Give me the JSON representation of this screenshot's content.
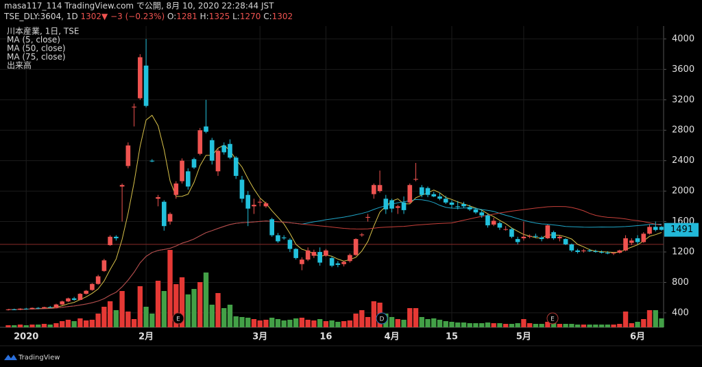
{
  "header": {
    "line1": "masa117_114 TradingView.com で公開, 8月 10, 2020 22:28:44 JST",
    "symbol": "TSE_DLY:3604, 1D",
    "change": "1302▼ −3 (−0.23%)",
    "ohlc": [
      {
        "k": "O:",
        "v": "1281"
      },
      {
        "k": "H:",
        "v": "1325"
      },
      {
        "k": "L:",
        "v": "1270"
      },
      {
        "k": "C:",
        "v": "1302"
      }
    ]
  },
  "footer": "TradingView",
  "chart_data": {
    "type": "candlestick",
    "legend_title": "川本産業, 1日, TSE",
    "volume_label": "出来高",
    "up_color": "#ef5350",
    "down_color": "#22c1dc",
    "vol_up_color": "#e53935",
    "vol_down_color": "#43a047",
    "ylim": [
      210,
      4170
    ],
    "yticks": [
      400,
      800,
      1200,
      1600,
      2000,
      2400,
      2800,
      3200,
      3600,
      4000
    ],
    "grid": true,
    "last_price": 1491,
    "price_line": 1300,
    "events": [
      "E",
      "D",
      "E"
    ],
    "categories": [
      null,
      null,
      null,
      "2020",
      null,
      null,
      null,
      null,
      null,
      null,
      null,
      null,
      null,
      null,
      null,
      null,
      null,
      null,
      null,
      null,
      null,
      null,
      null,
      "2月",
      null,
      null,
      null,
      null,
      null,
      null,
      null,
      null,
      null,
      null,
      null,
      null,
      null,
      null,
      null,
      null,
      null,
      null,
      "3月",
      null,
      null,
      null,
      null,
      null,
      null,
      null,
      null,
      null,
      null,
      "16",
      null,
      null,
      null,
      null,
      null,
      null,
      null,
      null,
      null,
      null,
      "4月",
      null,
      null,
      null,
      null,
      null,
      null,
      null,
      null,
      null,
      "15",
      null,
      null,
      null,
      null,
      null,
      null,
      null,
      null,
      null,
      null,
      null,
      "5月",
      null,
      null,
      null,
      null,
      null,
      null,
      null,
      null,
      null,
      null,
      null,
      null,
      null,
      null,
      null,
      null,
      null,
      null,
      "6月",
      null,
      null,
      null,
      null
    ],
    "ohlc": [
      [
        440,
        450,
        430,
        445
      ],
      [
        445,
        455,
        435,
        440
      ],
      [
        440,
        460,
        435,
        455
      ],
      [
        455,
        465,
        445,
        450
      ],
      [
        450,
        470,
        445,
        465
      ],
      [
        465,
        475,
        450,
        460
      ],
      [
        460,
        480,
        455,
        475
      ],
      [
        475,
        490,
        465,
        470
      ],
      [
        470,
        520,
        465,
        510
      ],
      [
        510,
        560,
        500,
        550
      ],
      [
        550,
        600,
        540,
        590
      ],
      [
        590,
        610,
        560,
        570
      ],
      [
        570,
        660,
        565,
        650
      ],
      [
        650,
        700,
        640,
        690
      ],
      [
        700,
        790,
        690,
        780
      ],
      [
        780,
        900,
        770,
        880
      ],
      [
        950,
        1110,
        940,
        1090
      ],
      [
        1290,
        1420,
        1280,
        1400
      ],
      [
        1400,
        1420,
        1350,
        1380
      ],
      [
        2060,
        2100,
        1600,
        2080
      ],
      [
        2330,
        2640,
        2300,
        2600
      ],
      [
        3100,
        3150,
        2850,
        3110
      ],
      [
        3220,
        3800,
        3200,
        3760
      ],
      [
        3650,
        4000,
        3100,
        3120
      ],
      [
        2400,
        2420,
        2380,
        2390
      ],
      [
        1900,
        1950,
        1800,
        1920
      ],
      [
        1860,
        1880,
        1480,
        1540
      ],
      [
        1600,
        1720,
        1560,
        1700
      ],
      [
        1950,
        2130,
        1900,
        2100
      ],
      [
        2130,
        2430,
        2100,
        2400
      ],
      [
        2260,
        2300,
        2020,
        2060
      ],
      [
        2420,
        2440,
        2290,
        2310
      ],
      [
        2490,
        2830,
        2470,
        2800
      ],
      [
        2850,
        3200,
        2760,
        2780
      ],
      [
        2670,
        2700,
        2350,
        2400
      ],
      [
        2260,
        2560,
        2200,
        2530
      ],
      [
        2600,
        2640,
        2480,
        2510
      ],
      [
        2620,
        2680,
        2420,
        2440
      ],
      [
        2440,
        2460,
        2160,
        2200
      ],
      [
        2150,
        2200,
        1850,
        1900
      ],
      [
        1950,
        2000,
        1540,
        1770
      ],
      [
        1800,
        1900,
        1700,
        1820
      ],
      [
        1850,
        1900,
        1800,
        1860
      ],
      [
        1800,
        1860,
        1780,
        1840
      ],
      [
        1630,
        1650,
        1400,
        1420
      ],
      [
        1420,
        1450,
        1320,
        1340
      ],
      [
        1390,
        1420,
        1360,
        1380
      ],
      [
        1360,
        1380,
        1200,
        1240
      ],
      [
        1240,
        1250,
        1100,
        1120
      ],
      [
        1040,
        1130,
        960,
        1100
      ],
      [
        1100,
        1260,
        1080,
        1220
      ],
      [
        1150,
        1230,
        1120,
        1200
      ],
      [
        1200,
        1260,
        1020,
        1060
      ],
      [
        1150,
        1240,
        1140,
        1220
      ],
      [
        1120,
        1140,
        1000,
        1020
      ],
      [
        1050,
        1080,
        1000,
        1030
      ],
      [
        1040,
        1080,
        1010,
        1070
      ],
      [
        1080,
        1180,
        1060,
        1160
      ],
      [
        1160,
        1380,
        1150,
        1370
      ],
      [
        1420,
        1450,
        1400,
        1430
      ],
      [
        1650,
        1700,
        1600,
        1660
      ],
      [
        1960,
        2100,
        1900,
        2080
      ],
      [
        2000,
        2270,
        1980,
        2080
      ],
      [
        1900,
        1950,
        1700,
        1760
      ],
      [
        1880,
        1900,
        1720,
        1770
      ],
      [
        1780,
        1820,
        1700,
        1800
      ],
      [
        1850,
        1930,
        1700,
        1750
      ],
      [
        1850,
        2100,
        1840,
        2080
      ],
      [
        2150,
        2370,
        2130,
        2160
      ],
      [
        2050,
        2080,
        1920,
        1950
      ],
      [
        2040,
        2060,
        1920,
        1950
      ],
      [
        1960,
        1990,
        1920,
        1930
      ],
      [
        1930,
        1980,
        1880,
        1900
      ],
      [
        1900,
        1940,
        1830,
        1850
      ],
      [
        1850,
        1880,
        1780,
        1820
      ],
      [
        1800,
        1870,
        1760,
        1790
      ],
      [
        1830,
        1860,
        1780,
        1800
      ],
      [
        1790,
        1820,
        1740,
        1760
      ],
      [
        1760,
        1780,
        1700,
        1720
      ],
      [
        1720,
        1750,
        1650,
        1680
      ],
      [
        1680,
        1700,
        1520,
        1550
      ],
      [
        1560,
        1650,
        1540,
        1610
      ],
      [
        1580,
        1600,
        1490,
        1520
      ],
      [
        1500,
        1540,
        1480,
        1500
      ],
      [
        1500,
        1520,
        1380,
        1400
      ],
      [
        1370,
        1400,
        1300,
        1330
      ],
      [
        1380,
        1600,
        1350,
        1400
      ],
      [
        1400,
        1430,
        1380,
        1410
      ],
      [
        1410,
        1440,
        1380,
        1400
      ],
      [
        1390,
        1410,
        1340,
        1370
      ],
      [
        1380,
        1560,
        1370,
        1550
      ],
      [
        1460,
        1480,
        1360,
        1380
      ],
      [
        1380,
        1420,
        1340,
        1400
      ],
      [
        1370,
        1380,
        1290,
        1300
      ],
      [
        1300,
        1310,
        1200,
        1220
      ],
      [
        1220,
        1240,
        1180,
        1200
      ],
      [
        1210,
        1240,
        1190,
        1220
      ],
      [
        1220,
        1240,
        1200,
        1210
      ],
      [
        1210,
        1230,
        1190,
        1200
      ],
      [
        1200,
        1220,
        1180,
        1190
      ],
      [
        1190,
        1210,
        1170,
        1180
      ],
      [
        1180,
        1200,
        1160,
        1190
      ],
      [
        1190,
        1230,
        1180,
        1220
      ],
      [
        1220,
        1420,
        1210,
        1380
      ],
      [
        1320,
        1380,
        1290,
        1350
      ],
      [
        1380,
        1420,
        1300,
        1330
      ],
      [
        1330,
        1460,
        1320,
        1440
      ],
      [
        1440,
        1560,
        1430,
        1530
      ],
      [
        1530,
        1600,
        1470,
        1490
      ],
      [
        1530,
        1540,
        1480,
        1491
      ]
    ],
    "volume": [
      30,
      30,
      40,
      30,
      40,
      40,
      50,
      40,
      60,
      90,
      110,
      90,
      130,
      100,
      110,
      200,
      300,
      380,
      250,
      530,
      230,
      120,
      600,
      300,
      200,
      680,
      530,
      1130,
      630,
      730,
      480,
      560,
      660,
      800,
      330,
      500,
      280,
      330,
      160,
      150,
      140,
      120,
      100,
      110,
      140,
      120,
      100,
      110,
      130,
      140,
      110,
      100,
      120,
      90,
      100,
      80,
      90,
      100,
      200,
      250,
      150,
      380,
      360,
      200,
      150,
      120,
      110,
      280,
      280,
      150,
      120,
      130,
      110,
      90,
      80,
      70,
      70,
      60,
      60,
      60,
      70,
      60,
      60,
      50,
      50,
      60,
      120,
      60,
      50,
      50,
      80,
      60,
      50,
      50,
      50,
      40,
      40,
      40,
      40,
      40,
      40,
      40,
      50,
      230,
      60,
      80,
      120,
      250,
      250,
      130
    ],
    "indicators": [
      {
        "name": "MA (5, close)",
        "color": "#d9c24a"
      },
      {
        "name": "MA (50, close)",
        "color": "#1fa6c8"
      },
      {
        "name": "MA (75, close)",
        "color": "#c8403a"
      }
    ]
  }
}
